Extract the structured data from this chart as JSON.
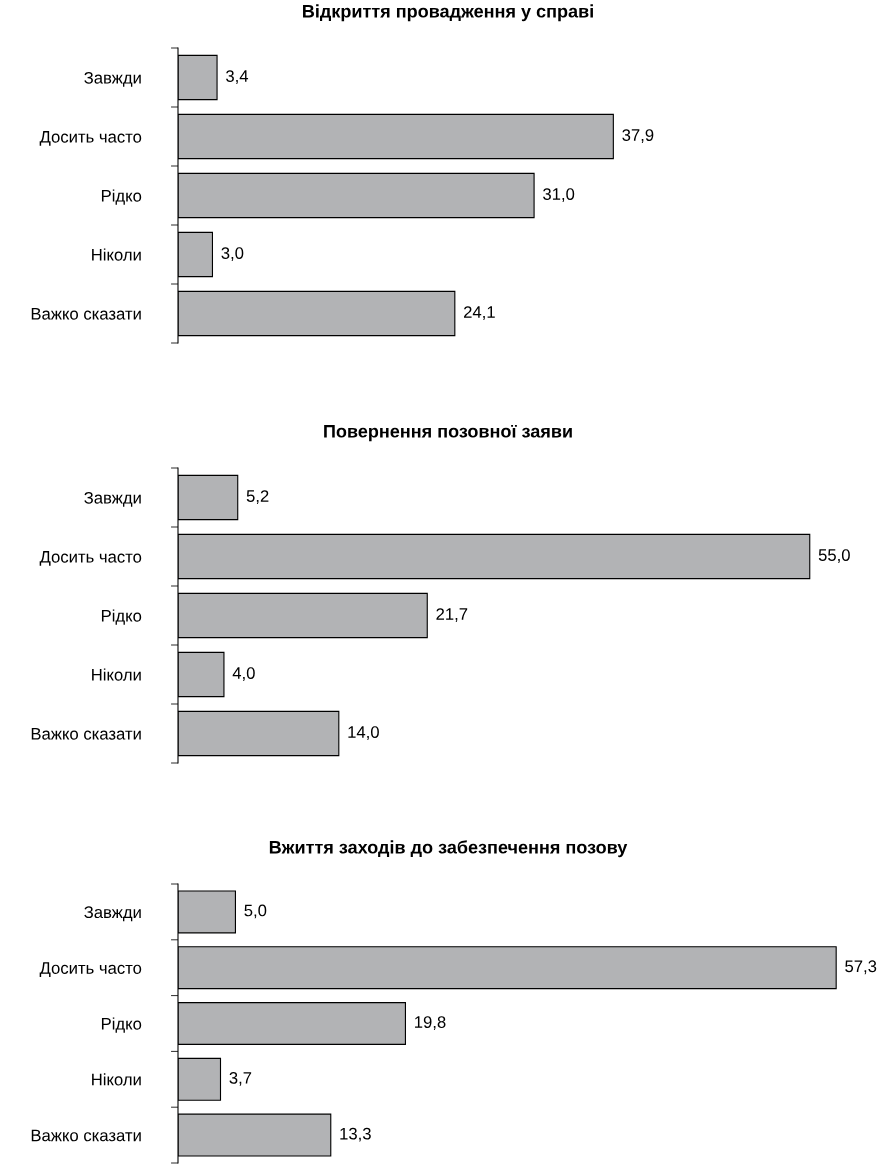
{
  "chart_data": [
    {
      "type": "bar",
      "orientation": "horizontal",
      "title": "Відкриття провадження у справі",
      "categories": [
        "Завжди",
        "Досить часто",
        "Рідко",
        "Ніколи",
        "Важко сказати"
      ],
      "values": [
        3.4,
        37.9,
        31.0,
        3.0,
        24.1
      ],
      "value_labels": [
        "3,4",
        "37,9",
        "31,0",
        "3,0",
        "24,1"
      ],
      "color": "#b2b3b5",
      "grid": false,
      "legend": false
    },
    {
      "type": "bar",
      "orientation": "horizontal",
      "title": "Повернення позовної заяви",
      "categories": [
        "Завжди",
        "Досить часто",
        "Рідко",
        "Ніколи",
        "Важко сказати"
      ],
      "values": [
        5.2,
        55.0,
        21.7,
        4.0,
        14.0
      ],
      "value_labels": [
        "5,2",
        "55,0",
        "21,7",
        "4,0",
        "14,0"
      ],
      "color": "#b2b3b5",
      "grid": false,
      "legend": false
    },
    {
      "type": "bar",
      "orientation": "horizontal",
      "title": "Вжиття заходів до забезпечення позову",
      "categories": [
        "Завжди",
        "Досить часто",
        "Рідко",
        "Ніколи",
        "Важко сказати"
      ],
      "values": [
        5.0,
        57.3,
        19.8,
        3.7,
        13.3
      ],
      "value_labels": [
        "5,0",
        "57,3",
        "19,8",
        "3,7",
        "13,3"
      ],
      "color": "#b2b3b5",
      "grid": false,
      "legend": false
    }
  ]
}
